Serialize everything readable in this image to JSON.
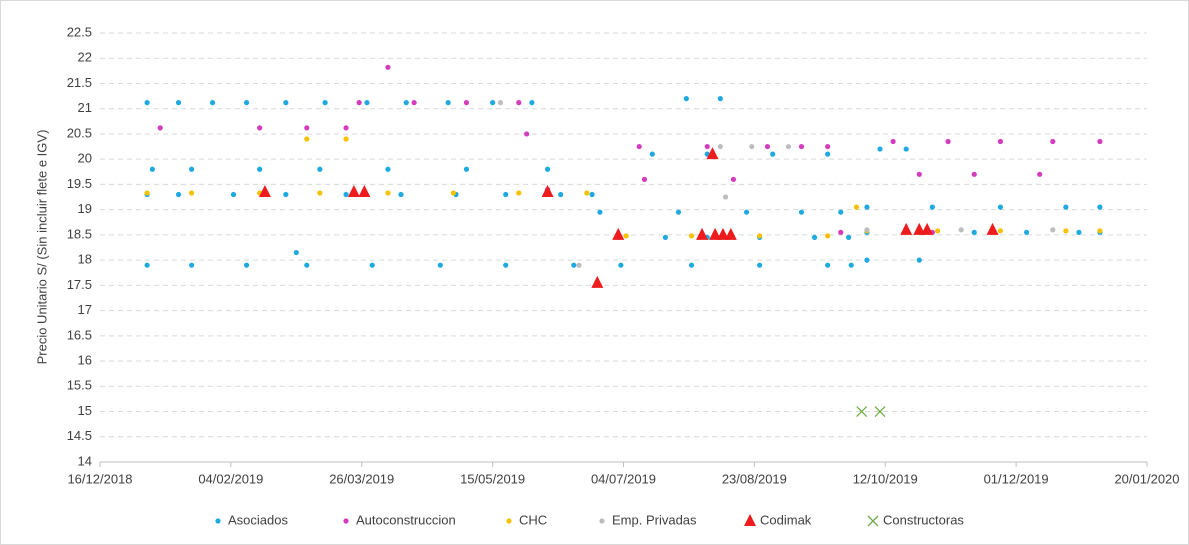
{
  "chart_data": {
    "type": "scatter",
    "y_label": "Precio Unitario S/ (Sin incluir flete e IGV)",
    "xlim": [
      "2018-12-16",
      "2020-01-20"
    ],
    "xticks": [
      {
        "value": "2018-12-16",
        "label": "16/12/2018"
      },
      {
        "value": "2019-02-04",
        "label": "04/02/2019"
      },
      {
        "value": "2019-03-26",
        "label": "26/03/2019"
      },
      {
        "value": "2019-05-15",
        "label": "15/05/2019"
      },
      {
        "value": "2019-07-04",
        "label": "04/07/2019"
      },
      {
        "value": "2019-08-23",
        "label": "23/08/2019"
      },
      {
        "value": "2019-10-12",
        "label": "12/10/2019"
      },
      {
        "value": "2019-12-01",
        "label": "01/12/2019"
      },
      {
        "value": "2020-01-20",
        "label": "20/01/2020"
      }
    ],
    "ylim": [
      14,
      22.5
    ],
    "yticks": [
      14,
      14.5,
      15,
      15.5,
      16,
      16.5,
      17,
      17.5,
      18,
      18.5,
      19,
      19.5,
      20,
      20.5,
      21,
      21.5,
      22,
      22.5
    ],
    "grid": true,
    "legend": "bottom",
    "series": [
      {
        "name": "Asociados",
        "color": "#1fa9e1",
        "marker": "circle",
        "x": [
          "2019-01-03",
          "2019-01-15",
          "2019-01-28",
          "2019-02-10",
          "2019-02-25",
          "2019-03-12",
          "2019-03-28",
          "2019-04-12",
          "2019-04-28",
          "2019-05-15",
          "2019-05-30",
          "2019-01-03",
          "2019-01-15",
          "2019-02-05",
          "2019-02-25",
          "2019-03-20",
          "2019-04-10",
          "2019-05-01",
          "2019-05-20",
          "2019-06-10",
          "2019-06-22",
          "2019-01-05",
          "2019-01-20",
          "2019-02-15",
          "2019-03-10",
          "2019-04-05",
          "2019-05-05",
          "2019-06-05",
          "2019-01-03",
          "2019-01-20",
          "2019-02-10",
          "2019-03-05",
          "2019-03-30",
          "2019-04-25",
          "2019-05-20",
          "2019-06-15",
          "2019-07-02",
          "2019-07-20",
          "2019-08-05",
          "2019-08-25",
          "2019-09-15",
          "2019-09-28",
          "2019-06-25",
          "2019-07-25",
          "2019-08-20",
          "2019-09-10",
          "2019-09-25",
          "2019-07-15",
          "2019-08-05",
          "2019-08-30",
          "2019-09-20",
          "2019-07-03",
          "2019-07-30",
          "2019-08-25",
          "2019-09-20",
          "2019-09-29",
          "2019-10-05",
          "2019-10-25",
          "2019-11-15",
          "2019-12-05",
          "2019-12-25",
          "2020-01-02",
          "2019-10-05",
          "2019-10-30",
          "2019-11-25",
          "2019-12-20",
          "2020-01-02",
          "2019-10-10",
          "2019-10-20",
          "2019-10-05",
          "2019-10-25",
          "2019-07-28",
          "2019-08-10",
          "2019-03-01"
        ],
        "y": [
          21.12,
          21.12,
          21.12,
          21.12,
          21.12,
          21.12,
          21.12,
          21.12,
          21.12,
          21.12,
          21.12,
          19.3,
          19.3,
          19.3,
          19.3,
          19.3,
          19.3,
          19.3,
          19.3,
          19.3,
          19.3,
          19.8,
          19.8,
          19.8,
          19.8,
          19.8,
          19.8,
          19.8,
          17.9,
          17.9,
          17.9,
          17.9,
          17.9,
          17.9,
          17.9,
          17.9,
          18.45,
          18.45,
          18.45,
          18.45,
          18.45,
          18.45,
          18.95,
          18.95,
          18.95,
          18.95,
          18.95,
          20.1,
          20.1,
          20.1,
          20.1,
          17.9,
          17.9,
          17.9,
          17.9,
          17.9,
          18.55,
          18.55,
          18.55,
          18.55,
          18.55,
          18.55,
          19.05,
          19.05,
          19.05,
          19.05,
          19.05,
          20.2,
          20.2,
          18.0,
          18.0,
          21.2,
          21.2,
          18.15
        ]
      },
      {
        "name": "Autoconstruccion",
        "color": "#d53cbd",
        "marker": "circle",
        "x": [
          "2019-01-08",
          "2019-02-15",
          "2019-03-05",
          "2019-03-20",
          "2019-03-25",
          "2019-04-15",
          "2019-05-05",
          "2019-05-25",
          "2019-04-05",
          "2019-07-10",
          "2019-08-05",
          "2019-08-28",
          "2019-09-10",
          "2019-09-20",
          "2019-10-15",
          "2019-11-05",
          "2019-11-25",
          "2019-12-15",
          "2020-01-02",
          "2019-09-25",
          "2019-10-30",
          "2019-10-25",
          "2019-11-15",
          "2019-12-10",
          "2019-06-05",
          "2019-05-28",
          "2019-07-12",
          "2019-08-15"
        ],
        "y": [
          20.62,
          20.62,
          20.62,
          20.62,
          21.12,
          21.12,
          21.12,
          21.12,
          21.82,
          20.25,
          20.25,
          20.25,
          20.25,
          20.25,
          20.35,
          20.35,
          20.35,
          20.35,
          20.35,
          18.55,
          18.55,
          19.7,
          19.7,
          19.7,
          19.4,
          20.5,
          19.6,
          19.6
        ]
      },
      {
        "name": "CHC",
        "color": "#f5c200",
        "marker": "circle",
        "x": [
          "2019-01-03",
          "2019-01-20",
          "2019-02-15",
          "2019-03-10",
          "2019-04-05",
          "2019-04-30",
          "2019-05-25",
          "2019-06-20",
          "2019-03-05",
          "2019-03-20",
          "2019-07-05",
          "2019-07-30",
          "2019-08-25",
          "2019-09-20",
          "2019-10-05",
          "2019-11-01",
          "2019-11-25",
          "2019-12-20",
          "2020-01-02",
          "2019-10-01"
        ],
        "y": [
          19.33,
          19.33,
          19.33,
          19.33,
          19.33,
          19.33,
          19.33,
          19.33,
          20.4,
          20.4,
          18.48,
          18.48,
          18.48,
          18.48,
          18.58,
          18.58,
          18.58,
          18.58,
          18.58,
          19.05
        ]
      },
      {
        "name": "Emp. Privadas",
        "color": "#bdbdbd",
        "marker": "circle",
        "x": [
          "2019-05-18",
          "2019-08-10",
          "2019-08-22",
          "2019-09-05",
          "2019-06-17",
          "2019-10-05",
          "2019-11-10",
          "2019-12-15",
          "2019-08-12"
        ],
        "y": [
          21.12,
          20.25,
          20.25,
          20.25,
          17.9,
          18.6,
          18.6,
          18.6,
          19.25
        ]
      },
      {
        "name": "Codimak",
        "color": "#ee1c1c",
        "marker": "triangle",
        "x": [
          "2019-02-17",
          "2019-03-23",
          "2019-03-27",
          "2019-06-05",
          "2019-06-24",
          "2019-07-02",
          "2019-08-03",
          "2019-08-07",
          "2019-08-08",
          "2019-08-11",
          "2019-08-14",
          "2019-10-20",
          "2019-10-25",
          "2019-10-28",
          "2019-11-22"
        ],
        "y": [
          19.35,
          19.35,
          19.35,
          19.35,
          17.55,
          18.5,
          18.5,
          20.1,
          18.5,
          18.5,
          18.5,
          18.6,
          18.6,
          18.6,
          18.6
        ]
      },
      {
        "name": "Constructoras",
        "color": "#70ad47",
        "marker": "x",
        "x": [
          "2019-10-03",
          "2019-10-10"
        ],
        "y": [
          15,
          15
        ]
      }
    ]
  }
}
